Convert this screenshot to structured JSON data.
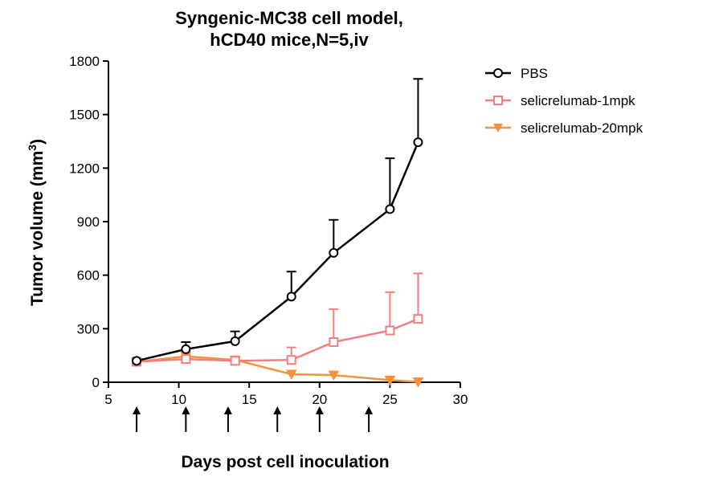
{
  "chart_data": {
    "type": "line",
    "title": [
      "Syngenic-MC38 cell model,",
      "hCD40 mice,N=5,iv"
    ],
    "xlabel": "Days post cell inoculation",
    "ylabel": "Tumor volume (mm",
    "ylabel_superscript": "3",
    "ylabel_suffix": ")",
    "xlim": [
      5,
      30
    ],
    "ylim": [
      0,
      1800
    ],
    "xticks": [
      5,
      10,
      15,
      20,
      25,
      30
    ],
    "yticks": [
      0,
      300,
      600,
      900,
      1200,
      1500,
      1800
    ],
    "grid": false,
    "legend_position": "top-right",
    "dosing_days": [
      7,
      10.5,
      13.5,
      17,
      20,
      23.5
    ],
    "series": [
      {
        "name": "PBS",
        "color": "#000000",
        "marker": "circle",
        "x": [
          7,
          10.5,
          14,
          18,
          21,
          25,
          27
        ],
        "y": [
          120,
          185,
          230,
          480,
          725,
          970,
          1345
        ],
        "error": [
          0,
          40,
          55,
          140,
          185,
          285,
          355
        ]
      },
      {
        "name": "selicrelumab-1mpk",
        "color": "#f08080",
        "marker": "square",
        "x": [
          7,
          10.5,
          14,
          18,
          21,
          25,
          27
        ],
        "y": [
          115,
          130,
          120,
          125,
          225,
          290,
          355
        ],
        "error": [
          0,
          15,
          10,
          70,
          185,
          215,
          255
        ]
      },
      {
        "name": "selicrelumab-20mpk",
        "color": "#f7923a",
        "marker": "triangle-down",
        "x": [
          7,
          10.5,
          14,
          18,
          21,
          25,
          27
        ],
        "y": [
          115,
          145,
          125,
          45,
          40,
          12,
          2
        ],
        "error": [
          0,
          0,
          0,
          0,
          0,
          0,
          0
        ]
      }
    ]
  }
}
